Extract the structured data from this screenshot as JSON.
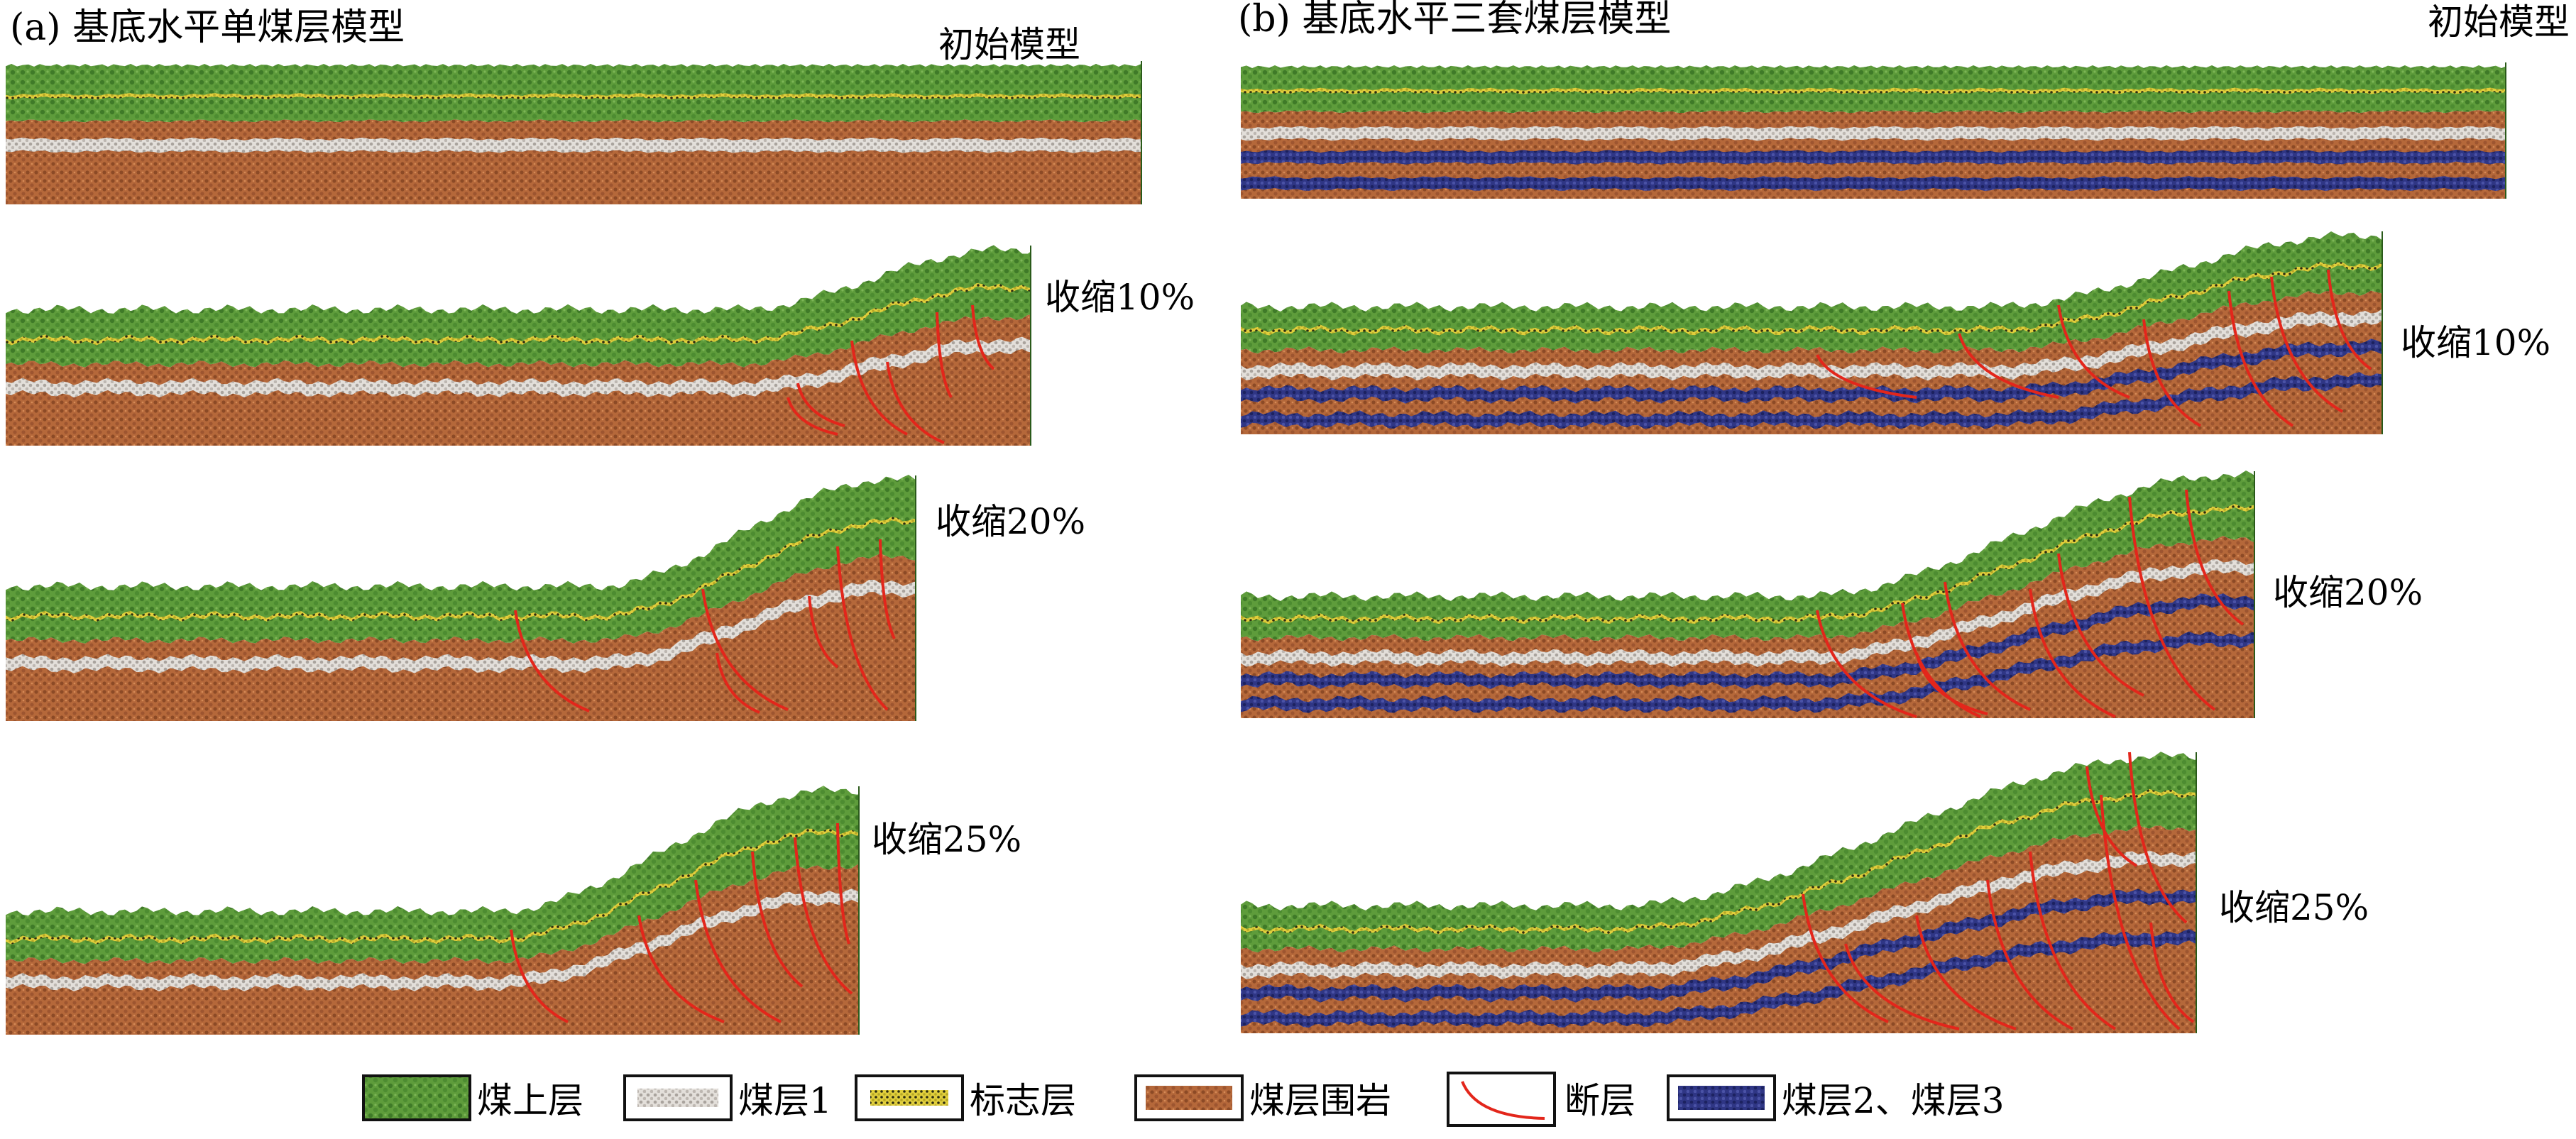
{
  "panel_a": {
    "title": "(a) 基底水平单煤层模型",
    "stages": [
      {
        "label": "初始模型",
        "shortening_pct": 0
      },
      {
        "label": "收缩10%",
        "shortening_pct": 10
      },
      {
        "label": "收缩20%",
        "shortening_pct": 20
      },
      {
        "label": "收缩25%",
        "shortening_pct": 25
      }
    ]
  },
  "panel_b": {
    "title": "(b) 基底水平三套煤层模型",
    "stages": [
      {
        "label": "初始模型",
        "shortening_pct": 0
      },
      {
        "label": "收缩10%",
        "shortening_pct": 10
      },
      {
        "label": "收缩20%",
        "shortening_pct": 20
      },
      {
        "label": "收缩25%",
        "shortening_pct": 25
      }
    ]
  },
  "legend": [
    {
      "label": "煤上层",
      "color": "#5b9a3a",
      "icon": "green-particle-swatch"
    },
    {
      "label": "煤层1",
      "color": "#d8d4cf",
      "icon": "white-particle-swatch"
    },
    {
      "label": "标志层",
      "color": "#e6d43a",
      "icon": "yellow-particle-swatch"
    },
    {
      "label": "煤层围岩",
      "color": "#b8693a",
      "icon": "brown-particle-swatch"
    },
    {
      "label": "断层",
      "color": "#e02a1f",
      "icon": "red-fault-line-swatch"
    },
    {
      "label": "煤层2、煤层3",
      "color": "#2f3a8a",
      "icon": "blue-particle-swatch"
    }
  ],
  "colors": {
    "upper": "#5e9c3b",
    "upper_dark": "#3f7a28",
    "marker": "#e1cf3c",
    "host": "#b5683a",
    "host_dark": "#8c4a26",
    "coal1": "#d9d5d0",
    "coal23": "#2f3685",
    "fault": "#e3261b"
  }
}
